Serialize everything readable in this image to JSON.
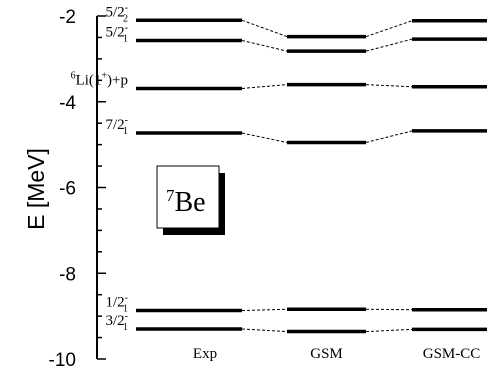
{
  "chart_data": {
    "type": "line",
    "ylabel": "E [MeV]",
    "ylim": [
      -10,
      -2
    ],
    "y_ticks": [
      {
        "value": -2,
        "label": "-2"
      },
      {
        "value": -4,
        "label": "-4"
      },
      {
        "value": -6,
        "label": "-6"
      },
      {
        "value": -8,
        "label": "-8"
      },
      {
        "value": -10,
        "label": "-10"
      }
    ],
    "y_minor_step": 0.5,
    "columns": [
      "Exp",
      "GSM",
      "GSM-CC"
    ],
    "series": [
      {
        "name": "5/2-2",
        "label_parts": [
          "5/2",
          "-",
          "2"
        ],
        "values": [
          -2.1,
          -2.48,
          -2.11
        ]
      },
      {
        "name": "5/2-1",
        "label_parts": [
          "5/2",
          "-",
          "1"
        ],
        "values": [
          -2.57,
          -2.82,
          -2.54
        ]
      },
      {
        "name": "6Li(1+)+p",
        "label_parts": [
          "6",
          "Li(1",
          "+",
          ")+p"
        ],
        "values": [
          -3.69,
          -3.6,
          -3.65
        ]
      },
      {
        "name": "7/2-1",
        "label_parts": [
          "7/2",
          "-",
          "1"
        ],
        "values": [
          -4.73,
          -4.95,
          -4.68
        ]
      },
      {
        "name": "1/2-1",
        "label_parts": [
          "1/2",
          "-",
          "1"
        ],
        "values": [
          -8.87,
          -8.84,
          -8.85
        ]
      },
      {
        "name": "3/2-1",
        "label_parts": [
          "3/2",
          "-",
          "1"
        ],
        "values": [
          -9.3,
          -9.36,
          -9.31
        ]
      }
    ]
  },
  "nucleus": {
    "mass_number": "7",
    "symbol": "Be"
  }
}
